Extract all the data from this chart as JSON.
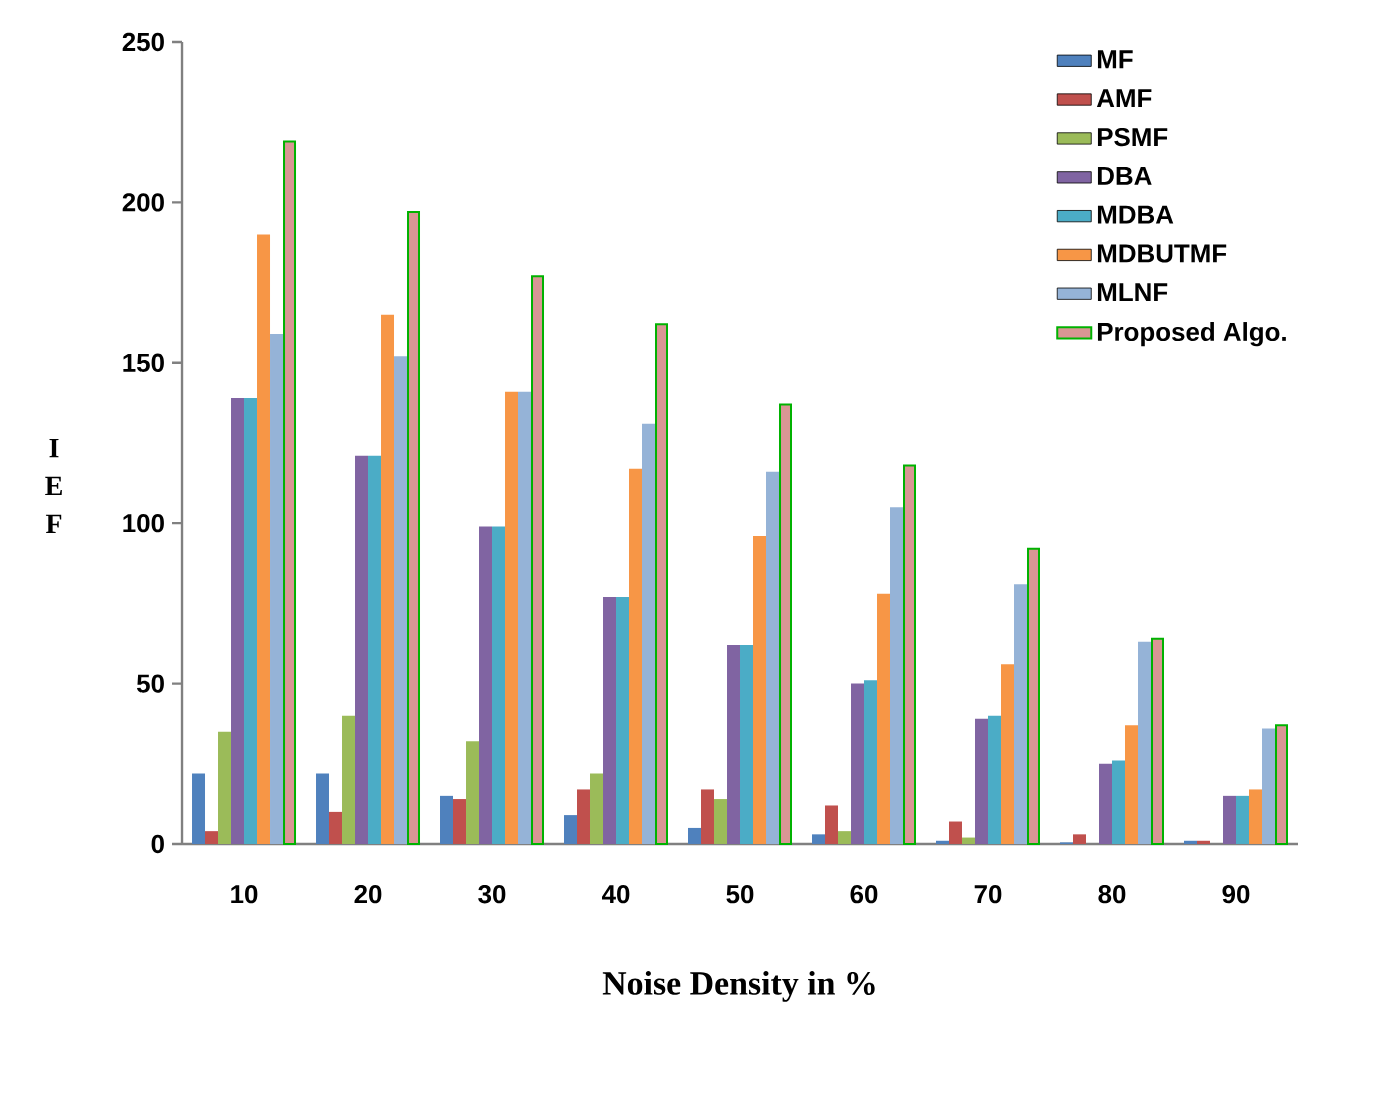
{
  "chart_data": {
    "type": "bar",
    "xlabel": "Noise Density in %",
    "ylabel": "I E F",
    "categories": [
      "10",
      "20",
      "30",
      "40",
      "50",
      "60",
      "70",
      "80",
      "90"
    ],
    "series": [
      {
        "name": "MF",
        "color": "#4f81bd",
        "values": [
          22,
          22,
          15,
          9,
          5,
          3,
          1,
          0.5,
          1
        ]
      },
      {
        "name": "AMF",
        "color": "#c0504d",
        "values": [
          4,
          10,
          14,
          17,
          17,
          12,
          7,
          3,
          1
        ]
      },
      {
        "name": "PSMF",
        "color": "#9bbb59",
        "values": [
          35,
          40,
          32,
          22,
          14,
          4,
          2,
          null,
          null
        ]
      },
      {
        "name": "DBA",
        "color": "#8064a2",
        "values": [
          139,
          121,
          99,
          77,
          62,
          50,
          39,
          25,
          15
        ]
      },
      {
        "name": "MDBA",
        "color": "#4bacc6",
        "values": [
          139,
          121,
          99,
          77,
          62,
          51,
          40,
          26,
          15
        ]
      },
      {
        "name": "MDBUTMF",
        "color": "#f79646",
        "values": [
          190,
          165,
          141,
          117,
          96,
          78,
          56,
          37,
          17
        ]
      },
      {
        "name": "MLNF",
        "color": "#95b3d7",
        "values": [
          159,
          152,
          141,
          131,
          116,
          105,
          81,
          63,
          36
        ]
      },
      {
        "name": "Proposed Algo.",
        "color": "#d99694",
        "values": [
          219,
          197,
          177,
          162,
          137,
          118,
          92,
          64,
          37
        ]
      }
    ],
    "ylim": [
      0,
      250
    ],
    "yticks": [
      0,
      50,
      100,
      150,
      200,
      250
    ],
    "grid": false,
    "legend": "top right"
  }
}
